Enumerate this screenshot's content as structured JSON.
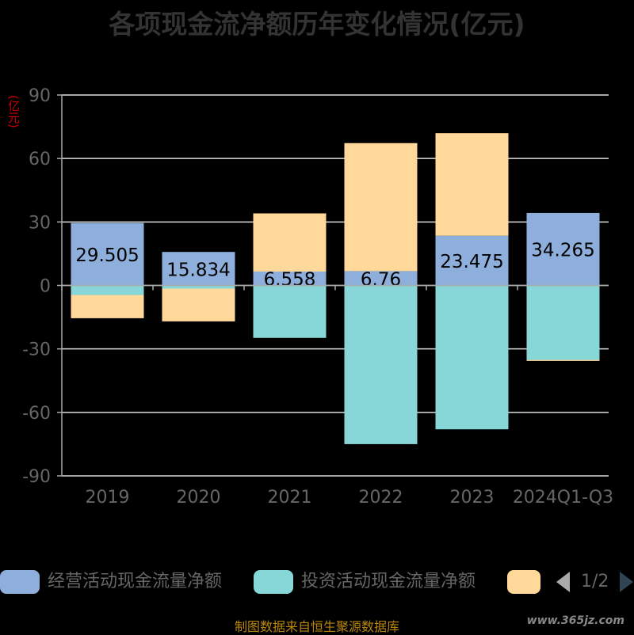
{
  "chart_data": {
    "type": "bar",
    "title": "各项现金流净额历年变化情况(亿元)",
    "ylabel": "(亿元)",
    "ylim": [
      -90,
      90
    ],
    "yticks": [
      90,
      60,
      30,
      0,
      -30,
      -60,
      -90
    ],
    "grid": true,
    "categories": [
      "2019",
      "2020",
      "2021",
      "2022",
      "2023",
      "2024Q1-Q3"
    ],
    "series": [
      {
        "name": "经营活动现金流量净额",
        "color": "#8eaedc",
        "values": [
          29.505,
          15.834,
          6.558,
          6.76,
          23.475,
          34.265
        ]
      },
      {
        "name": "投资活动现金流量净额",
        "color": "#87d6d8",
        "values": [
          -4.5,
          -1.5,
          -24.8,
          -75.0,
          -68.0,
          -35.2
        ]
      },
      {
        "name": "",
        "color": "#ffd89a",
        "values": [
          -11.0,
          -15.5,
          27.5,
          60.5,
          48.5,
          -0.5
        ]
      }
    ],
    "data_labels": [
      "29.505",
      "15.834",
      "6.558",
      "6.76",
      "23.475",
      "34.265"
    ],
    "legend_position": "bottom"
  },
  "legend": {
    "page": "1/2"
  },
  "footer": {
    "source": "制图数据来自恒生聚源数据库",
    "watermark": "www.365jz.com"
  }
}
